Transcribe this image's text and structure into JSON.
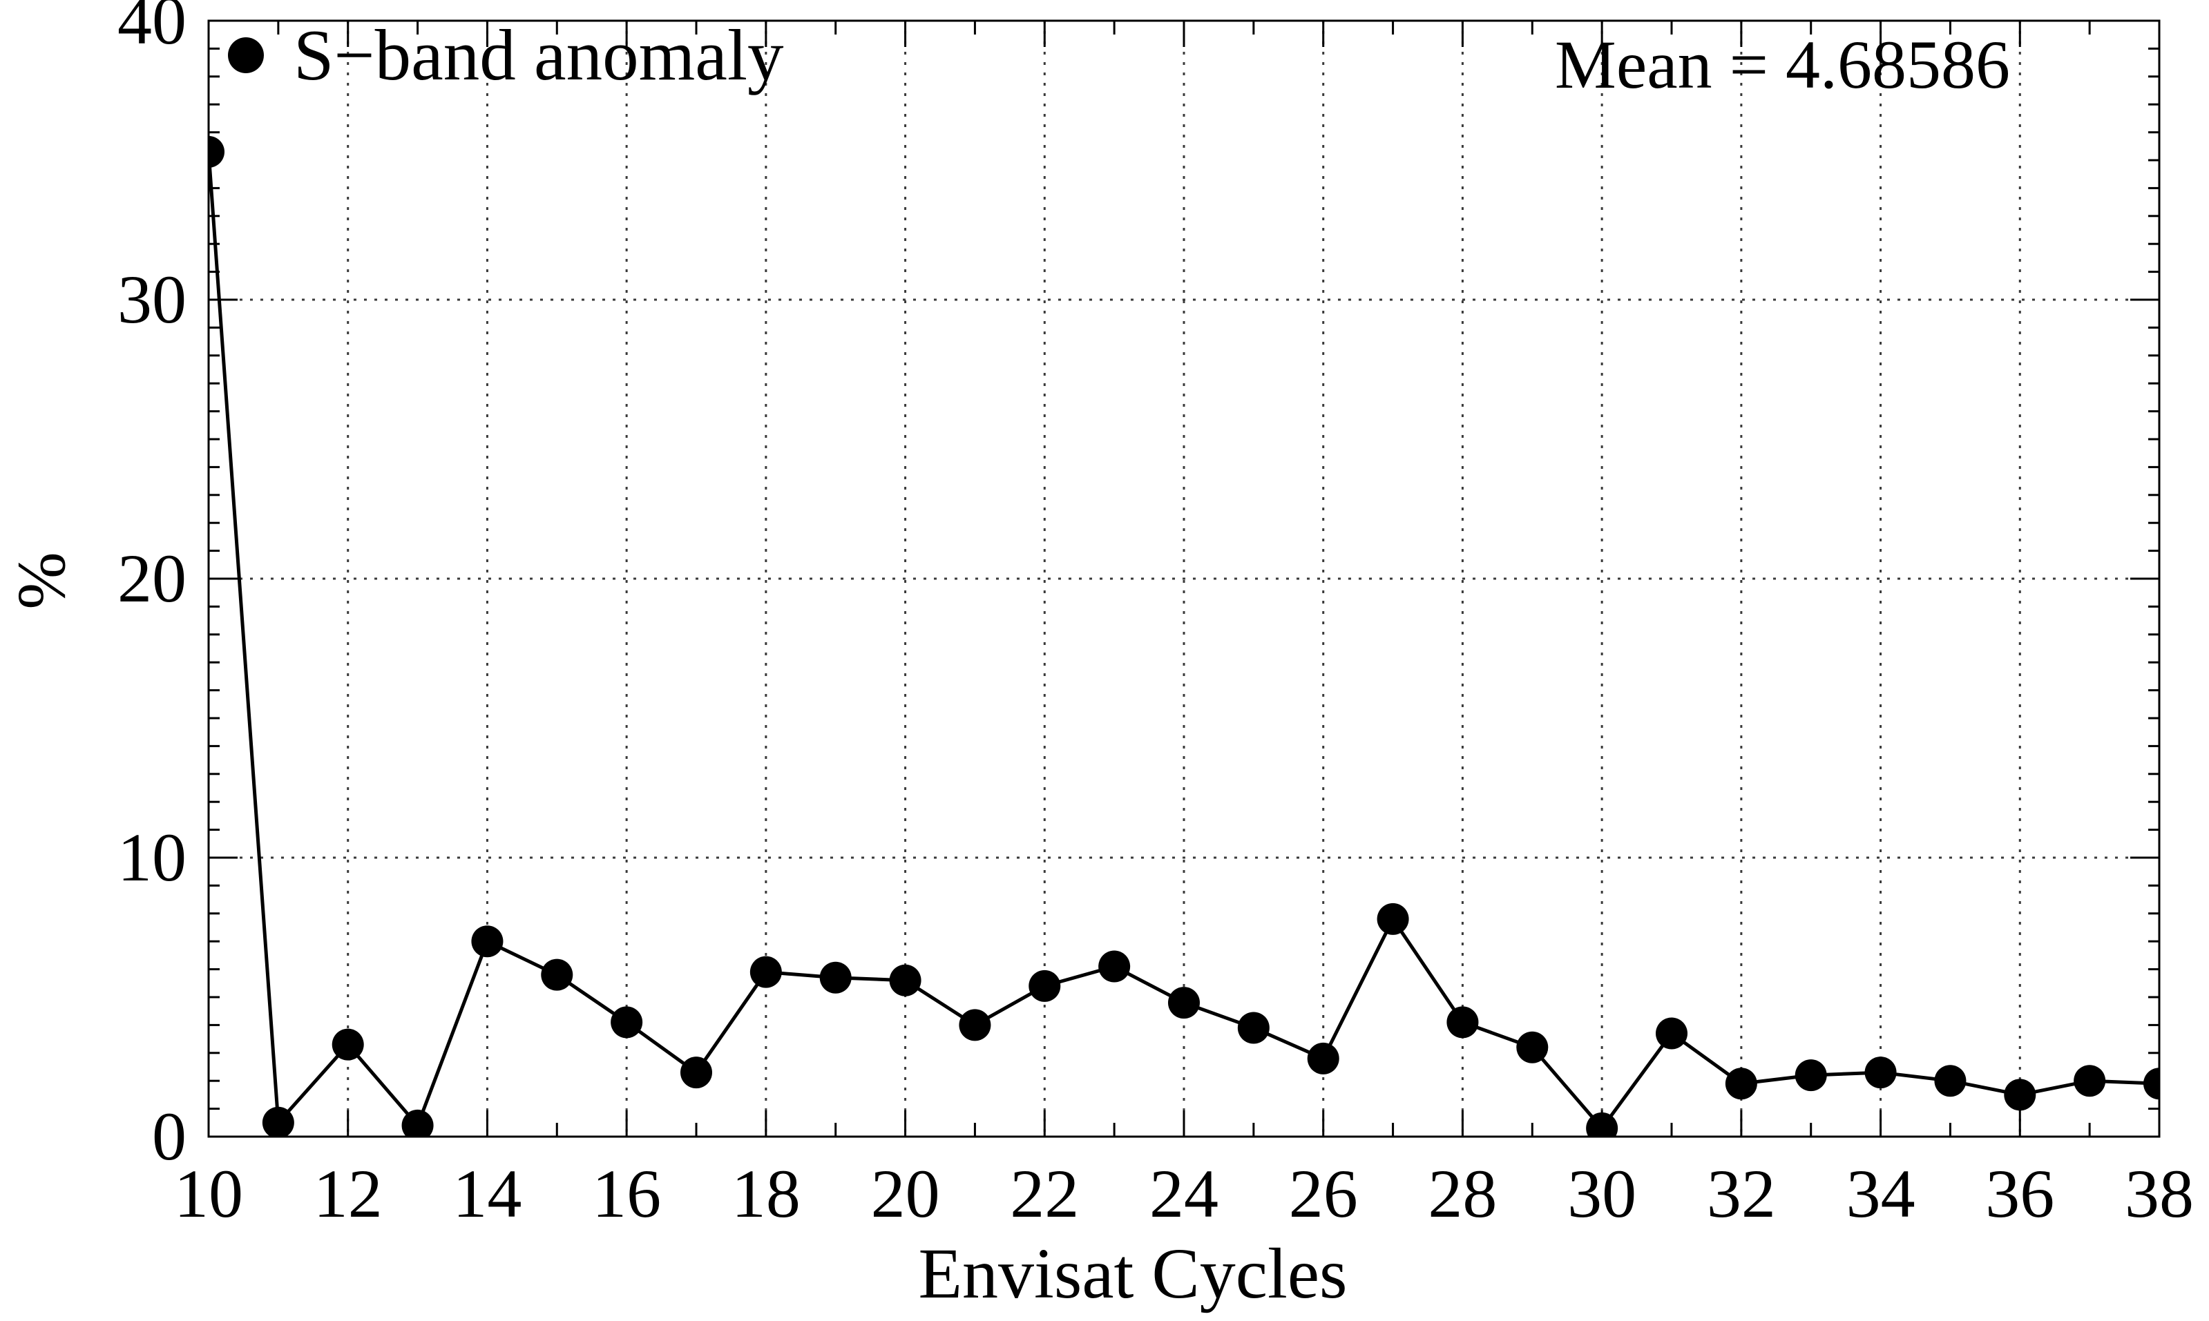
{
  "chart_data": {
    "type": "line",
    "title": "",
    "xlabel": "Envisat Cycles",
    "ylabel": "%",
    "annotation": "Mean = 4.68586",
    "legend": {
      "position": "top-left-inside",
      "entries": [
        {
          "label": "S−band anomaly",
          "marker": "filled-circle-icon"
        }
      ]
    },
    "x": [
      10,
      11,
      12,
      13,
      14,
      15,
      16,
      17,
      18,
      19,
      20,
      21,
      22,
      23,
      24,
      25,
      26,
      27,
      28,
      29,
      30,
      31,
      32,
      33,
      34,
      35,
      36,
      37,
      38
    ],
    "series": [
      {
        "name": "S−band anomaly",
        "values": [
          35.3,
          0.5,
          3.3,
          0.4,
          7.0,
          5.8,
          4.1,
          2.3,
          5.9,
          5.7,
          5.6,
          4.0,
          5.4,
          6.1,
          4.8,
          3.9,
          2.8,
          7.8,
          4.1,
          3.2,
          0.3,
          3.7,
          1.9,
          2.2,
          2.3,
          2.0,
          1.5,
          2.0,
          1.9
        ]
      }
    ],
    "xlim": [
      10,
      38
    ],
    "ylim": [
      0,
      40
    ],
    "x_ticks": [
      "10",
      "12",
      "14",
      "16",
      "18",
      "20",
      "22",
      "24",
      "26",
      "28",
      "30",
      "32",
      "34",
      "36",
      "38"
    ],
    "y_ticks": [
      "0",
      "10",
      "20",
      "30",
      "40"
    ],
    "grid": "dotted",
    "marker": "filled-circle",
    "colors": {
      "line": "#000000",
      "marker": "#000000",
      "grid": "#3a3a3a",
      "frame": "#000000",
      "background": "#ffffff",
      "text": "#000000"
    }
  }
}
